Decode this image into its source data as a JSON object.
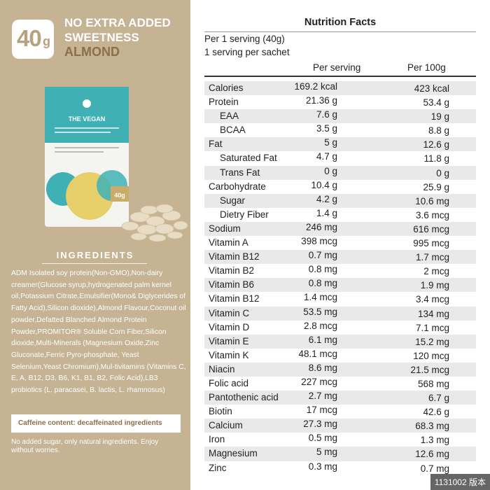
{
  "badge": {
    "number": "40",
    "unit": "g"
  },
  "headline": {
    "line1": "NO EXTRA ADDED SWEETNESS",
    "flavor": "ALMOND"
  },
  "product": {
    "brand": "THE VEGAN",
    "pack_size": "40g"
  },
  "ingredients": {
    "title": "INGREDIENTS",
    "text": "ADM Isolated soy protein(Non-GMO),Non-dairy creamer(Glucose syrup,hydrogenated palm kernel oil,Potassium Citrate,Emulsifier(Mono& Diglycerides of Fatty Acid),Silicon dioxide),Almond Flavour,Coconut oil powder,Defatted Blanched Almond Protein Powder,PROMITOR® Soluble Corn Fiber,Silicon dioxide,Multi-Minerals (Magnesium Oxide,Zinc Gluconate,Ferric Pyro-phosphate, Yeast Selenium,Yeast Chromium),Mul-tivitamins (Vitamins C, E, A, B12, D3, B6, K1, B1, B2, Folic Acid),LB3 probiotics (L. paracasei, B. lactis, L. rhamnosus)",
    "caffeine": "Caffeine content: decaffeinated ingredients",
    "note": "No added sugar, only natural ingredients. Enjoy without worries."
  },
  "nutrition": {
    "title": "Nutrition Facts",
    "serving_line1": "Per 1 serving (40g)",
    "serving_line2": "1 serving  per sachet",
    "col_serving": "Per serving",
    "col_100g": "Per 100g",
    "rows": [
      {
        "name": "Calories",
        "serving": "169.2 kcal",
        "per100": "423 kcal"
      },
      {
        "name": "Protein",
        "serving": "21.36 g",
        "per100": "53.4 g"
      },
      {
        "name": "EAA",
        "serving": "7.6 g",
        "per100": "19 g"
      },
      {
        "name": "BCAA",
        "serving": "3.5 g",
        "per100": "8.8 g"
      },
      {
        "name": "Fat",
        "serving": "5 g",
        "per100": "12.6 g"
      },
      {
        "name": "Saturated Fat",
        "serving": "4.7 g",
        "per100": "11.8 g"
      },
      {
        "name": "Trans Fat",
        "serving": "0 g",
        "per100": "0 g"
      },
      {
        "name": "Carbohydrate",
        "serving": "10.4 g",
        "per100": "25.9 g"
      },
      {
        "name": "Sugar",
        "serving": "4.2 g",
        "per100": "10.6 mg"
      },
      {
        "name": "Dietry Fiber",
        "serving": "1.4 g",
        "per100": "3.6 mcg"
      },
      {
        "name": "Sodium",
        "serving": "246 mg",
        "per100": "616 mcg"
      },
      {
        "name": "Vitamin A",
        "serving": "398 mcg",
        "per100": "995 mcg"
      },
      {
        "name": "Vitamin B12",
        "serving": "0.7 mg",
        "per100": "1.7 mcg"
      },
      {
        "name": "Vitamin B2",
        "serving": "0.8 mg",
        "per100": "2 mcg"
      },
      {
        "name": "Vitamin B6",
        "serving": "0.8 mg",
        "per100": "1.9 mg"
      },
      {
        "name": "Vitamin B12",
        "serving": "1.4 mcg",
        "per100": "3.4 mcg"
      },
      {
        "name": "Vitamin C",
        "serving": "53.5 mg",
        "per100": "134 mg"
      },
      {
        "name": "Vitamin D",
        "serving": "2.8 mcg",
        "per100": "7.1 mcg"
      },
      {
        "name": "Vitamin E",
        "serving": "6.1 mg",
        "per100": "15.2 mg"
      },
      {
        "name": "Vitamin K",
        "serving": "48.1 mcg",
        "per100": "120 mcg"
      },
      {
        "name": "Niacin",
        "serving": "8.6 mg",
        "per100": "21.5 mcg"
      },
      {
        "name": "Folic acid",
        "serving": "227 mcg",
        "per100": "568 mg"
      },
      {
        "name": "Pantothenic acid",
        "serving": "2.7 mg",
        "per100": "6.7 g"
      },
      {
        "name": "Biotin",
        "serving": "17 mcg",
        "per100": "42.6 g"
      },
      {
        "name": "Calcium",
        "serving": "27.3 mg",
        "per100": "68.3 mg"
      },
      {
        "name": "Iron",
        "serving": "0.5 mg",
        "per100": "1.3 mg"
      },
      {
        "name": "Magnesium",
        "serving": "5 mg",
        "per100": "12.6 mg"
      },
      {
        "name": "Zinc",
        "serving": "0.3 mg",
        "per100": "0.7 mg"
      }
    ],
    "indented": [
      "EAA",
      "BCAA",
      "Saturated Fat",
      "Trans Fat",
      "Sugar",
      "Dietry Fiber"
    ]
  },
  "stamp": "1131002 版本",
  "colors": {
    "left_panel": "#c5b393",
    "accent_brown": "#8a6f47",
    "teal": "#3fb1b5"
  }
}
